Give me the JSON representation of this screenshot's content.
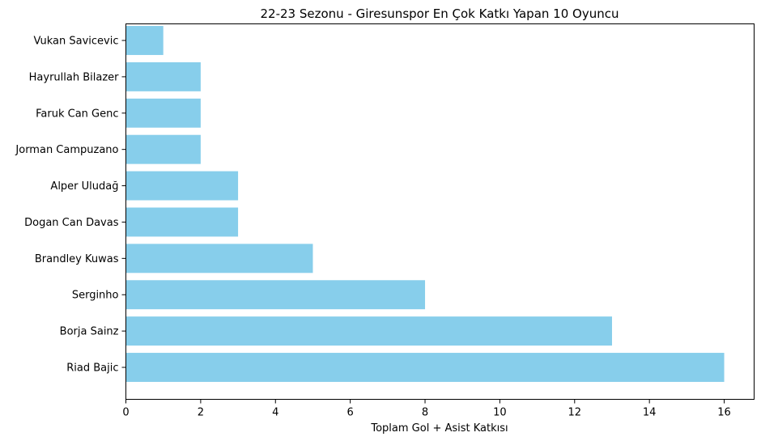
{
  "chart_data": {
    "type": "bar",
    "orientation": "horizontal",
    "title": "22-23 Sezonu - Giresunspor En Çok Katkı Yapan 10 Oyuncu",
    "xlabel": "Toplam Gol + Asist Katkısı",
    "ylabel": "",
    "categories": [
      "Riad Bajic",
      "Borja Sainz",
      "Serginho",
      "Brandley Kuwas",
      "Dogan Can Davas",
      "Alper Uludağ",
      "Jorman Campuzano",
      "Faruk Can Genc",
      "Hayrullah Bilazer",
      "Vukan Savicevic"
    ],
    "values": [
      16,
      13,
      8,
      5,
      3,
      3,
      2,
      2,
      2,
      1
    ],
    "xlim": [
      0,
      16.8
    ],
    "xticks": [
      "0",
      "2",
      "4",
      "6",
      "8",
      "10",
      "12",
      "14",
      "16"
    ],
    "grid": false,
    "bar_color": "#87ceeb"
  }
}
